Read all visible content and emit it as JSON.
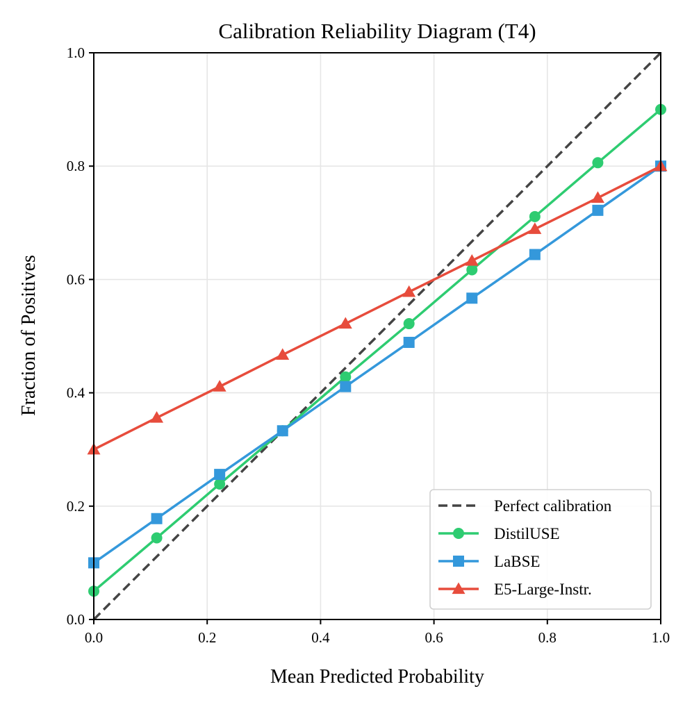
{
  "chart_data": {
    "type": "line",
    "title": "Calibration Reliability Diagram (T4)",
    "xlabel": "Mean Predicted Probability",
    "ylabel": "Fraction of Positives",
    "xlim": [
      0,
      1
    ],
    "ylim": [
      0,
      1
    ],
    "xticks": [
      0.0,
      0.2,
      0.4,
      0.6,
      0.8,
      1.0
    ],
    "yticks": [
      0.0,
      0.2,
      0.4,
      0.6,
      0.8,
      1.0
    ],
    "xtick_labels": [
      "0.0",
      "0.2",
      "0.4",
      "0.6",
      "0.8",
      "1.0"
    ],
    "ytick_labels": [
      "0.0",
      "0.2",
      "0.4",
      "0.6",
      "0.8",
      "1.0"
    ],
    "grid": true,
    "legend_position": "lower-right",
    "reference": {
      "name": "Perfect calibration",
      "x": [
        0,
        1
      ],
      "y": [
        0,
        1
      ],
      "color": "#444444",
      "style": "dashed"
    },
    "series": [
      {
        "name": "DistilUSE",
        "color": "#2ecc71",
        "marker": "circle",
        "x": [
          0.0,
          0.111,
          0.222,
          0.333,
          0.444,
          0.556,
          0.667,
          0.778,
          0.889,
          1.0
        ],
        "y": [
          0.05,
          0.144,
          0.239,
          0.333,
          0.428,
          0.522,
          0.617,
          0.711,
          0.806,
          0.9
        ]
      },
      {
        "name": "LaBSE",
        "color": "#3498db",
        "marker": "square",
        "x": [
          0.0,
          0.111,
          0.222,
          0.333,
          0.444,
          0.556,
          0.667,
          0.778,
          0.889,
          1.0
        ],
        "y": [
          0.1,
          0.178,
          0.256,
          0.333,
          0.411,
          0.489,
          0.567,
          0.644,
          0.722,
          0.8
        ]
      },
      {
        "name": "E5-Large-Instr.",
        "color": "#e74c3c",
        "marker": "triangle",
        "x": [
          0.0,
          0.111,
          0.222,
          0.333,
          0.444,
          0.556,
          0.667,
          0.778,
          0.889,
          1.0
        ],
        "y": [
          0.3,
          0.356,
          0.411,
          0.467,
          0.522,
          0.578,
          0.633,
          0.689,
          0.744,
          0.8
        ]
      }
    ]
  }
}
